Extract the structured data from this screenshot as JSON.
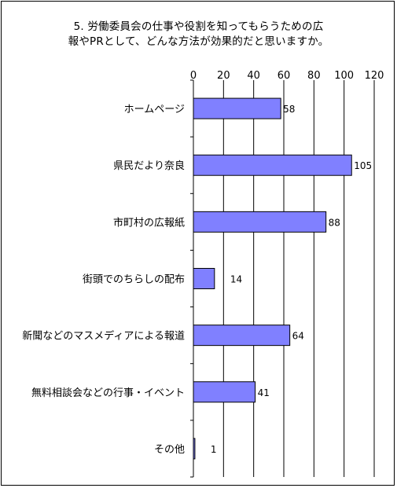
{
  "chart_data": {
    "type": "bar",
    "orientation": "horizontal",
    "title_lines": [
      "5. 労働委員会の仕事や役割を知ってもらうための広",
      "報やPRとして、どんな方法が効果的だと思いますか。"
    ],
    "categories": [
      "ホームページ",
      "県民だより奈良",
      "市町村の広報紙",
      "街頭でのちらしの配布",
      "新聞などのマスメディアによる報道",
      "無料相談会などの行事・イベント",
      "その他"
    ],
    "values": [
      58,
      105,
      88,
      14,
      64,
      41,
      1
    ],
    "xlim": [
      0,
      120
    ],
    "x_ticks": [
      0,
      20,
      40,
      60,
      80,
      100,
      120
    ],
    "x_axis_position": "top",
    "grid": "vertical",
    "legend": "none",
    "colors": {
      "bar_fill": "#8080ff",
      "bar_stroke": "#000000",
      "grid": "#000000"
    }
  }
}
